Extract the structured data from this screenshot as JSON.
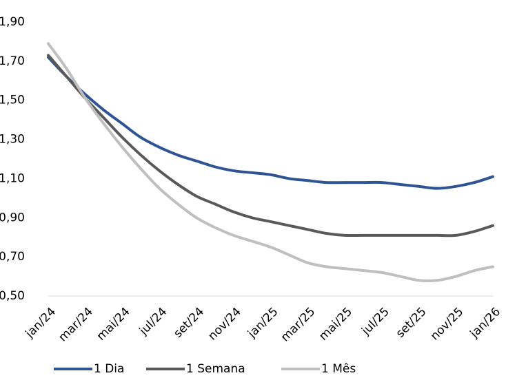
{
  "chart_data": {
    "type": "line",
    "categories": [
      "jan/24",
      null,
      "mar/24",
      null,
      "mai/24",
      null,
      "jul/24",
      null,
      "set/24",
      null,
      "nov/24",
      null,
      "jan/25",
      null,
      "mar/25",
      null,
      "mai/25",
      null,
      "jul/25",
      null,
      "set/25",
      null,
      "nov/25",
      null,
      "jan/26"
    ],
    "series": [
      {
        "name": "1 Dia",
        "color": "#2f5496",
        "values": [
          1.72,
          1.62,
          1.53,
          1.45,
          1.38,
          1.31,
          1.26,
          1.22,
          1.19,
          1.16,
          1.14,
          1.13,
          1.12,
          1.1,
          1.09,
          1.08,
          1.08,
          1.08,
          1.08,
          1.07,
          1.06,
          1.05,
          1.06,
          1.08,
          1.11
        ]
      },
      {
        "name": "1 Semana",
        "color": "#595959",
        "values": [
          1.73,
          1.62,
          1.51,
          1.41,
          1.31,
          1.22,
          1.14,
          1.07,
          1.01,
          0.97,
          0.93,
          0.9,
          0.88,
          0.86,
          0.84,
          0.82,
          0.81,
          0.81,
          0.81,
          0.81,
          0.81,
          0.81,
          0.81,
          0.83,
          0.86
        ]
      },
      {
        "name": "1 Mês",
        "color": "#bfbfbf",
        "values": [
          1.79,
          1.66,
          1.51,
          1.38,
          1.26,
          1.15,
          1.05,
          0.97,
          0.9,
          0.85,
          0.81,
          0.78,
          0.75,
          0.71,
          0.67,
          0.65,
          0.64,
          0.63,
          0.62,
          0.6,
          0.58,
          0.58,
          0.6,
          0.63,
          0.65
        ]
      }
    ],
    "ylim": [
      0.5,
      1.9
    ],
    "yticks": [
      {
        "value": 0.5,
        "label": "0,50"
      },
      {
        "value": 0.7,
        "label": "0,70"
      },
      {
        "value": 0.9,
        "label": "0,90"
      },
      {
        "value": 1.1,
        "label": "1,10"
      },
      {
        "value": 1.3,
        "label": "1,30"
      },
      {
        "value": 1.5,
        "label": "1,50"
      },
      {
        "value": 1.7,
        "label": "1,70"
      },
      {
        "value": 1.9,
        "label": "1,90"
      }
    ],
    "grid": false,
    "legend": "bottom"
  }
}
